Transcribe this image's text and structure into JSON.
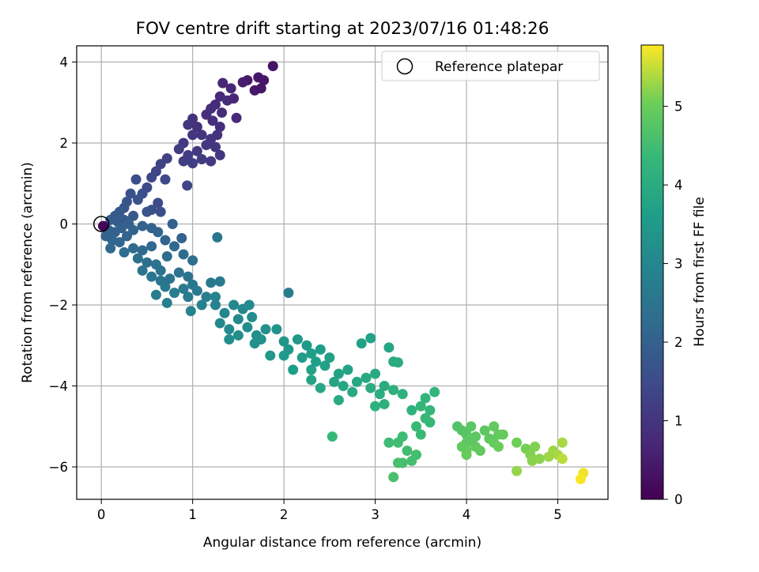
{
  "chart_data": {
    "type": "scatter",
    "title": "FOV centre drift starting at 2023/07/16 01:48:26",
    "xlabel": "Angular distance from reference (arcmin)",
    "ylabel": "Rotation from reference (arcmin)",
    "xlim": [
      -0.27,
      5.55
    ],
    "ylim": [
      -6.8,
      4.4
    ],
    "xticks": [
      0,
      1,
      2,
      3,
      4,
      5
    ],
    "yticks": [
      -6,
      -4,
      -2,
      0,
      2,
      4
    ],
    "grid": true,
    "legend": {
      "placement": "top-right",
      "entries": [
        "Reference platepar"
      ]
    },
    "reference_point": {
      "x": 0,
      "y": 0
    },
    "colorbar": {
      "label": "Hours from first FF file",
      "range": [
        0,
        5.78
      ],
      "ticks": [
        0,
        1,
        2,
        3,
        4,
        5
      ],
      "colormap": "viridis"
    },
    "points": [
      [
        1.88,
        3.9,
        0.35
      ],
      [
        1.72,
        3.62,
        0.4
      ],
      [
        1.78,
        3.55,
        0.4
      ],
      [
        1.6,
        3.55,
        0.45
      ],
      [
        1.68,
        3.3,
        0.45
      ],
      [
        1.55,
        3.5,
        0.5
      ],
      [
        1.75,
        3.35,
        0.4
      ],
      [
        1.33,
        3.48,
        0.7
      ],
      [
        1.42,
        3.35,
        0.7
      ],
      [
        1.3,
        3.15,
        0.75
      ],
      [
        1.38,
        3.05,
        0.8
      ],
      [
        1.25,
        2.95,
        0.8
      ],
      [
        1.45,
        3.1,
        0.7
      ],
      [
        1.2,
        2.85,
        0.85
      ],
      [
        1.48,
        2.62,
        0.75
      ],
      [
        1.32,
        2.75,
        0.8
      ],
      [
        1.15,
        2.7,
        0.9
      ],
      [
        1.0,
        2.6,
        0.95
      ],
      [
        0.95,
        2.45,
        1.0
      ],
      [
        1.05,
        2.4,
        0.95
      ],
      [
        1.22,
        2.55,
        0.9
      ],
      [
        1.3,
        2.4,
        0.9
      ],
      [
        1.1,
        2.2,
        1.0
      ],
      [
        1.2,
        2.1,
        1.0
      ],
      [
        1.0,
        2.2,
        1.05
      ],
      [
        0.9,
        2.0,
        1.1
      ],
      [
        1.15,
        1.95,
        1.05
      ],
      [
        1.25,
        1.9,
        1.0
      ],
      [
        1.05,
        1.8,
        1.1
      ],
      [
        0.95,
        1.7,
        1.15
      ],
      [
        1.1,
        1.6,
        1.15
      ],
      [
        1.2,
        1.55,
        1.1
      ],
      [
        1.0,
        1.5,
        1.2
      ],
      [
        0.9,
        1.55,
        1.2
      ],
      [
        1.3,
        1.7,
        1.05
      ],
      [
        1.27,
        2.2,
        0.95
      ],
      [
        0.85,
        1.85,
        1.15
      ],
      [
        0.72,
        1.62,
        1.25
      ],
      [
        0.65,
        1.48,
        1.3
      ],
      [
        0.6,
        1.3,
        1.35
      ],
      [
        0.55,
        1.15,
        1.4
      ],
      [
        0.94,
        0.95,
        1.35
      ],
      [
        0.7,
        1.1,
        1.45
      ],
      [
        0.5,
        0.9,
        1.5
      ],
      [
        0.38,
        1.1,
        1.55
      ],
      [
        0.45,
        0.75,
        1.6
      ],
      [
        0.4,
        0.6,
        1.65
      ],
      [
        0.32,
        0.75,
        1.65
      ],
      [
        0.28,
        0.55,
        1.7
      ],
      [
        0.62,
        0.52,
        1.5
      ],
      [
        0.55,
        0.35,
        1.6
      ],
      [
        0.5,
        0.3,
        1.7
      ],
      [
        0.65,
        0.3,
        1.6
      ],
      [
        0.25,
        0.4,
        1.75
      ],
      [
        0.2,
        0.3,
        1.8
      ],
      [
        0.15,
        0.2,
        1.85
      ],
      [
        0.1,
        0.1,
        1.9
      ],
      [
        0.18,
        0.05,
        1.9
      ],
      [
        0.25,
        0.1,
        1.85
      ],
      [
        0.35,
        0.2,
        1.8
      ],
      [
        0.3,
        0.0,
        1.95
      ],
      [
        0.22,
        -0.1,
        2.0
      ],
      [
        0.15,
        -0.2,
        2.0
      ],
      [
        0.08,
        -0.15,
        2.0
      ],
      [
        0.05,
        -0.3,
        2.05
      ],
      [
        0.12,
        -0.4,
        2.1
      ],
      [
        0.2,
        -0.45,
        2.15
      ],
      [
        0.28,
        -0.3,
        2.1
      ],
      [
        0.35,
        -0.15,
        2.05
      ],
      [
        0.45,
        -0.05,
        2.0
      ],
      [
        0.55,
        -0.1,
        2.05
      ],
      [
        0.62,
        -0.2,
        2.1
      ],
      [
        0.78,
        0.0,
        1.95
      ],
      [
        0.88,
        -0.35,
        2.0
      ],
      [
        0.7,
        -0.4,
        2.1
      ],
      [
        0.55,
        -0.55,
        2.2
      ],
      [
        0.45,
        -0.65,
        2.25
      ],
      [
        0.35,
        -0.6,
        2.25
      ],
      [
        0.25,
        -0.7,
        2.3
      ],
      [
        0.1,
        -0.6,
        2.2
      ],
      [
        0.02,
        -0.05,
        0.05
      ],
      [
        0.4,
        -0.85,
        2.35
      ],
      [
        0.5,
        -0.95,
        2.4
      ],
      [
        0.6,
        -1.0,
        2.45
      ],
      [
        0.45,
        -1.15,
        2.5
      ],
      [
        0.55,
        -1.3,
        2.55
      ],
      [
        0.65,
        -1.4,
        2.55
      ],
      [
        0.75,
        -1.35,
        2.5
      ],
      [
        0.85,
        -1.2,
        2.45
      ],
      [
        0.95,
        -1.3,
        2.5
      ],
      [
        1.0,
        -1.5,
        2.6
      ],
      [
        0.9,
        -1.6,
        2.65
      ],
      [
        0.8,
        -1.7,
        2.7
      ],
      [
        0.7,
        -1.55,
        2.6
      ],
      [
        0.6,
        -1.75,
        2.75
      ],
      [
        0.72,
        -1.95,
        2.8
      ],
      [
        0.95,
        -1.8,
        2.7
      ],
      [
        1.05,
        -1.65,
        2.65
      ],
      [
        1.15,
        -1.8,
        2.75
      ],
      [
        1.1,
        -2.0,
        2.85
      ],
      [
        0.98,
        -2.15,
        2.9
      ],
      [
        1.2,
        -1.45,
        2.6
      ],
      [
        1.3,
        -1.42,
        2.65
      ],
      [
        1.27,
        -0.33,
        2.55
      ],
      [
        0.8,
        -0.55,
        2.2
      ],
      [
        0.9,
        -0.75,
        2.3
      ],
      [
        0.72,
        -0.8,
        2.3
      ],
      [
        1.0,
        -0.9,
        2.35
      ],
      [
        0.65,
        -1.15,
        2.45
      ],
      [
        1.25,
        -2.0,
        2.9
      ],
      [
        1.35,
        -2.2,
        3.0
      ],
      [
        1.3,
        -2.45,
        3.05
      ],
      [
        1.4,
        -2.6,
        3.1
      ],
      [
        1.5,
        -2.35,
        3.1
      ],
      [
        1.55,
        -2.1,
        3.05
      ],
      [
        1.65,
        -2.3,
        3.15
      ],
      [
        1.6,
        -2.55,
        3.2
      ],
      [
        1.7,
        -2.75,
        3.2
      ],
      [
        1.8,
        -2.6,
        3.25
      ],
      [
        1.75,
        -2.85,
        3.3
      ],
      [
        1.68,
        -2.95,
        3.3
      ],
      [
        1.62,
        -2.0,
        3.1
      ],
      [
        1.5,
        -2.75,
        3.2
      ],
      [
        1.4,
        -2.85,
        3.2
      ],
      [
        1.45,
        -2.0,
        3.05
      ],
      [
        1.25,
        -1.8,
        2.9
      ],
      [
        2.05,
        -1.7,
        2.7
      ],
      [
        1.92,
        -2.6,
        3.35
      ],
      [
        2.0,
        -2.9,
        3.4
      ],
      [
        2.05,
        -3.1,
        3.45
      ],
      [
        2.15,
        -2.85,
        3.45
      ],
      [
        2.25,
        -3.0,
        3.5
      ],
      [
        2.2,
        -3.3,
        3.55
      ],
      [
        2.3,
        -3.2,
        3.6
      ],
      [
        2.4,
        -3.1,
        3.6
      ],
      [
        2.35,
        -3.4,
        3.65
      ],
      [
        2.45,
        -3.5,
        3.7
      ],
      [
        2.3,
        -3.6,
        3.7
      ],
      [
        2.5,
        -3.3,
        3.7
      ],
      [
        2.1,
        -3.6,
        3.6
      ],
      [
        2.0,
        -3.25,
        3.5
      ],
      [
        1.85,
        -3.25,
        3.45
      ],
      [
        2.6,
        -3.7,
        3.75
      ],
      [
        2.55,
        -3.9,
        3.8
      ],
      [
        2.7,
        -3.6,
        3.8
      ],
      [
        2.8,
        -3.9,
        3.85
      ],
      [
        2.65,
        -4.0,
        3.85
      ],
      [
        2.75,
        -4.15,
        3.9
      ],
      [
        2.9,
        -3.8,
        3.9
      ],
      [
        3.0,
        -3.7,
        3.95
      ],
      [
        2.95,
        -4.05,
        4.0
      ],
      [
        3.1,
        -4.0,
        4.0
      ],
      [
        3.05,
        -4.2,
        4.05
      ],
      [
        3.2,
        -4.1,
        4.1
      ],
      [
        3.3,
        -4.2,
        4.15
      ],
      [
        2.6,
        -4.35,
        3.95
      ],
      [
        2.4,
        -4.05,
        3.85
      ],
      [
        2.3,
        -3.85,
        3.8
      ],
      [
        2.85,
        -2.95,
        3.7
      ],
      [
        2.95,
        -2.82,
        3.75
      ],
      [
        3.15,
        -3.05,
        3.85
      ],
      [
        3.2,
        -3.4,
        3.95
      ],
      [
        3.25,
        -3.42,
        4.0
      ],
      [
        3.0,
        -4.5,
        4.15
      ],
      [
        3.1,
        -4.45,
        4.1
      ],
      [
        3.4,
        -4.6,
        4.2
      ],
      [
        3.55,
        -4.3,
        4.25
      ],
      [
        3.5,
        -4.5,
        4.3
      ],
      [
        3.6,
        -4.6,
        4.3
      ],
      [
        3.65,
        -4.15,
        4.25
      ],
      [
        3.55,
        -4.8,
        4.35
      ],
      [
        3.6,
        -4.9,
        4.35
      ],
      [
        3.45,
        -5.0,
        4.4
      ],
      [
        3.5,
        -5.2,
        4.4
      ],
      [
        3.3,
        -5.25,
        4.45
      ],
      [
        3.15,
        -5.4,
        4.45
      ],
      [
        3.25,
        -5.4,
        4.5
      ],
      [
        3.35,
        -5.6,
        4.5
      ],
      [
        3.45,
        -5.7,
        4.55
      ],
      [
        3.4,
        -5.85,
        4.55
      ],
      [
        3.3,
        -5.9,
        4.55
      ],
      [
        3.25,
        -5.9,
        4.6
      ],
      [
        3.2,
        -6.25,
        4.6
      ],
      [
        2.53,
        -5.25,
        4.35
      ],
      [
        3.9,
        -5.0,
        4.7
      ],
      [
        3.95,
        -5.1,
        4.75
      ],
      [
        4.0,
        -5.2,
        4.75
      ],
      [
        4.05,
        -5.0,
        4.8
      ],
      [
        4.1,
        -5.25,
        4.8
      ],
      [
        4.2,
        -5.1,
        4.85
      ],
      [
        4.25,
        -5.3,
        4.85
      ],
      [
        4.3,
        -5.0,
        4.9
      ],
      [
        4.35,
        -5.2,
        4.9
      ],
      [
        4.4,
        -5.2,
        4.95
      ],
      [
        4.0,
        -5.4,
        4.85
      ],
      [
        4.1,
        -5.5,
        4.9
      ],
      [
        4.15,
        -5.6,
        4.9
      ],
      [
        4.05,
        -5.3,
        4.85
      ],
      [
        4.3,
        -5.4,
        4.95
      ],
      [
        4.35,
        -5.5,
        5.0
      ],
      [
        4.0,
        -5.6,
        4.95
      ],
      [
        4.0,
        -5.7,
        4.95
      ],
      [
        3.95,
        -5.5,
        4.9
      ],
      [
        4.55,
        -5.4,
        5.05
      ],
      [
        4.65,
        -5.55,
        5.1
      ],
      [
        4.7,
        -5.7,
        5.15
      ],
      [
        4.75,
        -5.5,
        5.15
      ],
      [
        4.8,
        -5.8,
        5.2
      ],
      [
        4.72,
        -5.85,
        5.2
      ],
      [
        4.55,
        -6.1,
        5.25
      ],
      [
        4.95,
        -5.6,
        5.3
      ],
      [
        5.0,
        -5.7,
        5.35
      ],
      [
        5.05,
        -5.4,
        5.35
      ],
      [
        5.05,
        -5.8,
        5.45
      ],
      [
        5.28,
        -6.15,
        5.7
      ],
      [
        5.25,
        -6.3,
        5.75
      ],
      [
        4.9,
        -5.75,
        5.3
      ]
    ]
  }
}
